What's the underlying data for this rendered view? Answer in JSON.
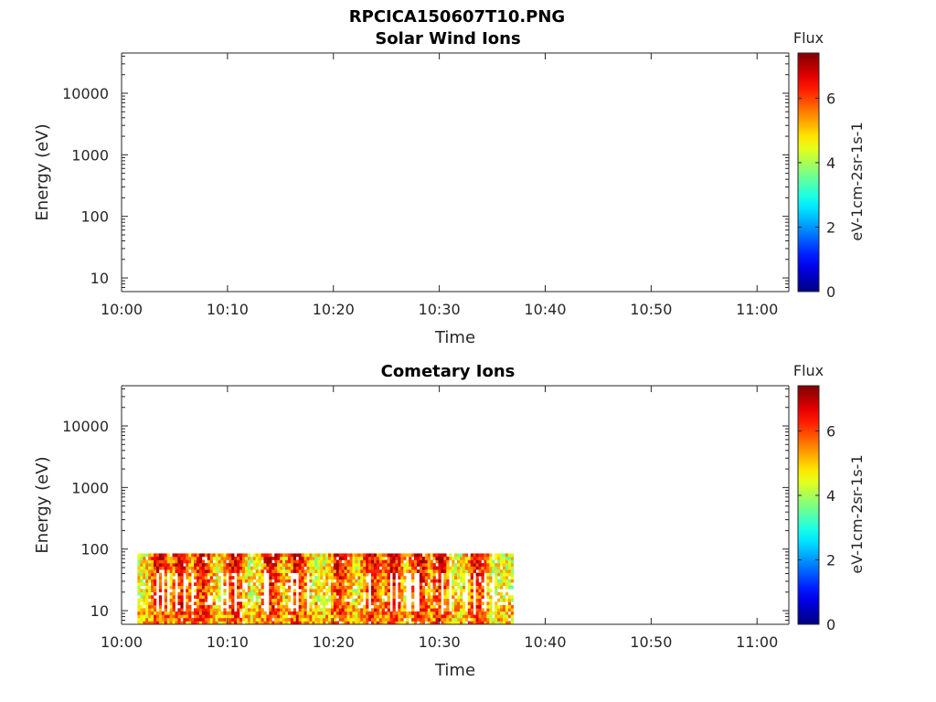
{
  "figure": {
    "title": "RPCICA150607T10.PNG"
  },
  "chart_data": [
    {
      "type": "heatmap",
      "title": "Solar Wind Ions",
      "xlabel": "Time",
      "ylabel": "Energy (eV)",
      "x_ticks": [
        "10:00",
        "10:10",
        "10:20",
        "10:30",
        "10:40",
        "10:50",
        "11:00"
      ],
      "x_range_minutes": [
        0,
        63
      ],
      "y_scale": "log",
      "y_ticks": [
        10,
        100,
        1000,
        10000
      ],
      "y_tick_labels": [
        "10",
        "100",
        "1000",
        "10000"
      ],
      "y_range": [
        6,
        45000
      ],
      "colorbar": {
        "title": "Flux",
        "label": "eV-1cm-2sr-1s-1",
        "ticks": [
          0,
          2,
          4,
          6
        ],
        "tick_labels": [
          "0",
          "2",
          "4",
          "6"
        ],
        "range": [
          0,
          7.4
        ],
        "colormap": "jet"
      },
      "data": []
    },
    {
      "type": "heatmap",
      "title": "Cometary Ions",
      "xlabel": "Time",
      "ylabel": "Energy (eV)",
      "x_ticks": [
        "10:00",
        "10:10",
        "10:20",
        "10:30",
        "10:40",
        "10:50",
        "11:00"
      ],
      "x_range_minutes": [
        0,
        63
      ],
      "y_scale": "log",
      "y_ticks": [
        10,
        100,
        1000,
        10000
      ],
      "y_tick_labels": [
        "10",
        "100",
        "1000",
        "10000"
      ],
      "y_range": [
        6,
        45000
      ],
      "colorbar": {
        "title": "Flux",
        "label": "eV-1cm-2sr-1s-1",
        "ticks": [
          0,
          2,
          4,
          6
        ],
        "tick_labels": [
          "0",
          "2",
          "4",
          "6"
        ],
        "range": [
          0,
          7.4
        ],
        "colormap": "jet"
      },
      "data_extent": {
        "time_start_minutes": 1.5,
        "time_end_minutes": 37,
        "energy_min_eV": 6,
        "energy_max_eV": 85
      },
      "flux_band": {
        "typical_min": 3.5,
        "typical_max": 6.5,
        "peak_max": 7.2
      },
      "high_flux_times_minutes": [
        3.5,
        5.5,
        7.5,
        10.5,
        14,
        16.5,
        20.5,
        23.5,
        25.5,
        28,
        30,
        33.5
      ]
    }
  ]
}
